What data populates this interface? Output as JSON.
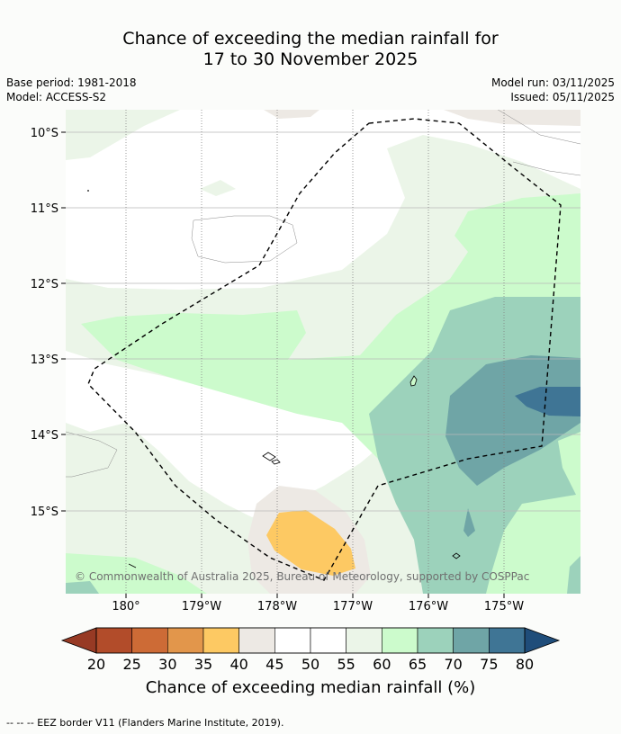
{
  "title_line1": "Chance of exceeding the median rainfall for",
  "title_line2": "17 to 30 November 2025",
  "base_period": "Base period: 1981-2018",
  "model": "Model: ACCESS-S2",
  "model_run": "Model run: 03/11/2025",
  "issued": "Issued: 05/11/2025",
  "lat_labels": [
    "10°S",
    "11°S",
    "12°S",
    "13°S",
    "14°S",
    "15°S"
  ],
  "lon_labels": [
    "180°",
    "179°W",
    "178°W",
    "177°W",
    "176°W",
    "175°W"
  ],
  "copyright": "© Commonwealth of Australia 2025, Bureau of Meteorology, supported by COSPPac",
  "colorbar": {
    "ticks": [
      "20",
      "25",
      "30",
      "35",
      "40",
      "45",
      "50",
      "55",
      "60",
      "65",
      "70",
      "75",
      "80"
    ],
    "colors": [
      "#b24c2a",
      "#cd6b36",
      "#e2964b",
      "#fdc963",
      "#ede9e4",
      "#ffffff",
      "#ffffff",
      "#ebf5e8",
      "#ccfbcc",
      "#9cd2bb",
      "#6fa5a6",
      "#3f7595"
    ],
    "low_extend_color": "#973a24",
    "high_extend_color": "#1f4d7a",
    "label": "Chance of exceeding median rainfall (%)"
  },
  "legend_note": "--  --  -- EEZ border V11 (Flanders Marine Institute, 2019)."
}
